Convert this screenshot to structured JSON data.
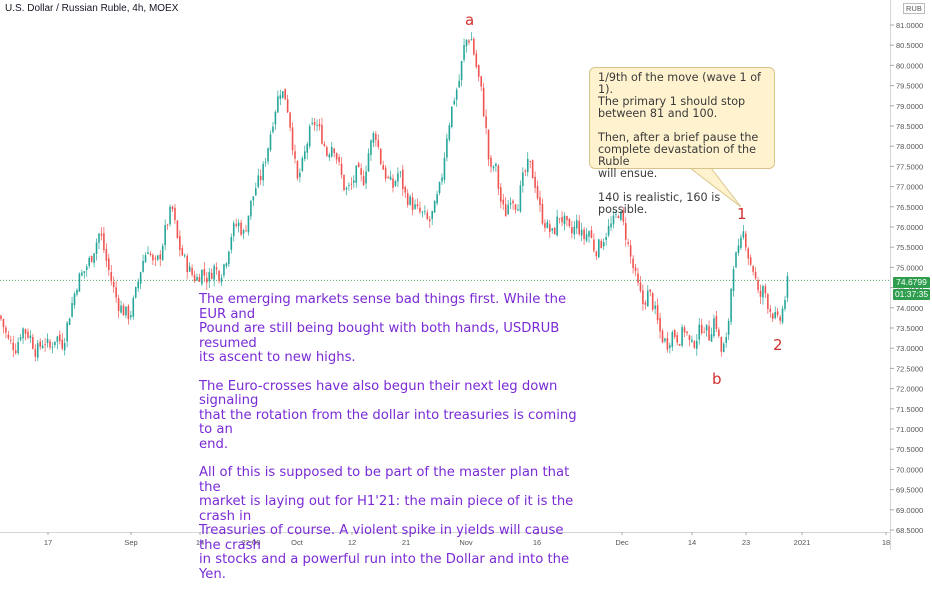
{
  "header": {
    "title": "U.S. Dollar / Russian Ruble, 4h, MOEX"
  },
  "currency_badge": "RUB",
  "price_label": "74.6799",
  "countdown_label": "01:37:35",
  "colors": {
    "up": "#26a69a",
    "down": "#ef5350",
    "label_green": "#2e9e4e",
    "annotation_text": "#7a2bd6",
    "wave_labels": "#d32f2f"
  },
  "annotation": {
    "paragraphs": [
      "The emerging markets sense bad things first. While the EUR and\nPound are still being bought with both hands, USDRUB resumed\nits ascent to new highs.",
      "The Euro-crosses have also begun their next leg down signaling\nthat the rotation from the dollar into treasuries is coming to an\nend.",
      "All of this is supposed to be part of the master plan that the\nmarket is laying out for H1'21: the main piece of it is the crash in\nTreasuries of course. A violent spike in yields will cause the crash\nin stocks and a powerful run into the Dollar and into the Yen."
    ]
  },
  "callout": {
    "paragraphs": [
      "1/9th of the move (wave 1 of 1).\nThe primary 1 should stop\nbetween 81 and 100.",
      "Then, after a brief pause the\ncomplete devastation of the Ruble\nwill ensue.",
      "140 is realistic, 160 is possible."
    ]
  },
  "wave_labels": {
    "a": "a",
    "one": "1",
    "b": "b",
    "two": "2"
  },
  "chart_data": {
    "type": "candlestick",
    "title": "U.S. Dollar / Russian Ruble, 4h, MOEX",
    "y_axis": {
      "range": [
        68.5,
        81.2
      ],
      "ticks": [
        "68.5000",
        "69.0000",
        "69.5000",
        "70.0000",
        "70.5000",
        "71.0000",
        "71.5000",
        "72.0000",
        "72.5000",
        "73.0000",
        "73.5000",
        "74.0000",
        "74.5000",
        "75.0000",
        "75.5000",
        "76.0000",
        "76.5000",
        "77.0000",
        "77.5000",
        "78.0000",
        "78.5000",
        "79.0000",
        "79.5000",
        "80.0000",
        "80.5000",
        "81.0000"
      ]
    },
    "x_axis": {
      "ticks": [
        "17",
        "Sep",
        "14",
        "22:00",
        "Oct",
        "12",
        "21",
        "Nov",
        "16",
        "Dec",
        "14",
        "23",
        "2021",
        "18"
      ]
    },
    "close_path": [
      [
        0,
        73.8
      ],
      [
        8,
        73.2
      ],
      [
        16,
        73.0
      ],
      [
        22,
        73.5
      ],
      [
        30,
        73.3
      ],
      [
        36,
        72.9
      ],
      [
        44,
        73.2
      ],
      [
        50,
        73.0
      ],
      [
        56,
        73.3
      ],
      [
        63,
        73.1
      ],
      [
        70,
        73.9
      ],
      [
        78,
        74.7
      ],
      [
        84,
        74.9
      ],
      [
        92,
        75.3
      ],
      [
        100,
        75.9
      ],
      [
        106,
        75.2
      ],
      [
        112,
        74.6
      ],
      [
        118,
        74.1
      ],
      [
        124,
        73.9
      ],
      [
        130,
        73.8
      ],
      [
        136,
        74.4
      ],
      [
        142,
        75.1
      ],
      [
        148,
        75.5
      ],
      [
        154,
        75.0
      ],
      [
        160,
        75.3
      ],
      [
        166,
        76.0
      ],
      [
        172,
        76.5
      ],
      [
        178,
        75.6
      ],
      [
        184,
        75.2
      ],
      [
        190,
        74.9
      ],
      [
        196,
        74.7
      ],
      [
        202,
        74.9
      ],
      [
        208,
        74.7
      ],
      [
        214,
        75.0
      ],
      [
        220,
        74.8
      ],
      [
        226,
        75.2
      ],
      [
        232,
        75.9
      ],
      [
        238,
        76.1
      ],
      [
        244,
        75.8
      ],
      [
        250,
        76.5
      ],
      [
        256,
        77.0
      ],
      [
        262,
        77.3
      ],
      [
        268,
        78.0
      ],
      [
        274,
        78.8
      ],
      [
        280,
        79.4
      ],
      [
        286,
        79.2
      ],
      [
        291,
        78.4
      ],
      [
        297,
        77.1
      ],
      [
        303,
        77.6
      ],
      [
        309,
        78.3
      ],
      [
        315,
        78.6
      ],
      [
        321,
        78.3
      ],
      [
        327,
        77.8
      ],
      [
        333,
        78.1
      ],
      [
        339,
        77.5
      ],
      [
        345,
        76.9
      ],
      [
        351,
        77.0
      ],
      [
        357,
        77.4
      ],
      [
        363,
        77.1
      ],
      [
        369,
        77.9
      ],
      [
        375,
        78.4
      ],
      [
        381,
        77.6
      ],
      [
        387,
        77.2
      ],
      [
        393,
        77.0
      ],
      [
        399,
        77.4
      ],
      [
        405,
        76.8
      ],
      [
        411,
        76.6
      ],
      [
        417,
        76.4
      ],
      [
        423,
        76.3
      ],
      [
        429,
        76.1
      ],
      [
        435,
        76.5
      ],
      [
        441,
        77.1
      ],
      [
        447,
        78.3
      ],
      [
        453,
        79.1
      ],
      [
        459,
        79.6
      ],
      [
        465,
        80.6
      ],
      [
        471,
        80.7
      ],
      [
        476,
        80.0
      ],
      [
        481,
        79.4
      ],
      [
        486,
        78.4
      ],
      [
        490,
        77.3
      ],
      [
        495,
        77.6
      ],
      [
        500,
        76.7
      ],
      [
        505,
        76.3
      ],
      [
        511,
        76.8
      ],
      [
        517,
        76.5
      ],
      [
        523,
        77.2
      ],
      [
        529,
        77.6
      ],
      [
        535,
        77.1
      ],
      [
        541,
        76.3
      ],
      [
        547,
        76.0
      ],
      [
        553,
        75.8
      ],
      [
        559,
        76.3
      ],
      [
        565,
        76.1
      ],
      [
        571,
        75.8
      ],
      [
        577,
        76.1
      ],
      [
        583,
        75.7
      ],
      [
        589,
        75.9
      ],
      [
        595,
        75.4
      ],
      [
        601,
        75.6
      ],
      [
        607,
        75.9
      ],
      [
        613,
        76.1
      ],
      [
        619,
        76.4
      ],
      [
        625,
        75.9
      ],
      [
        631,
        75.2
      ],
      [
        637,
        74.6
      ],
      [
        643,
        74.1
      ],
      [
        649,
        74.4
      ],
      [
        655,
        73.9
      ],
      [
        661,
        73.3
      ],
      [
        667,
        73.1
      ],
      [
        673,
        73.4
      ],
      [
        679,
        73.2
      ],
      [
        685,
        73.5
      ],
      [
        691,
        73.0
      ],
      [
        697,
        73.3
      ],
      [
        703,
        73.6
      ],
      [
        709,
        73.3
      ],
      [
        715,
        73.8
      ],
      [
        721,
        72.9
      ],
      [
        727,
        73.2
      ],
      [
        733,
        75.1
      ],
      [
        739,
        75.4
      ],
      [
        744,
        75.9
      ],
      [
        749,
        75.2
      ],
      [
        754,
        74.9
      ],
      [
        759,
        74.2
      ],
      [
        764,
        74.5
      ],
      [
        769,
        74.0
      ],
      [
        774,
        73.8
      ],
      [
        779,
        73.6
      ],
      [
        784,
        74.1
      ],
      [
        788,
        74.7
      ]
    ]
  }
}
